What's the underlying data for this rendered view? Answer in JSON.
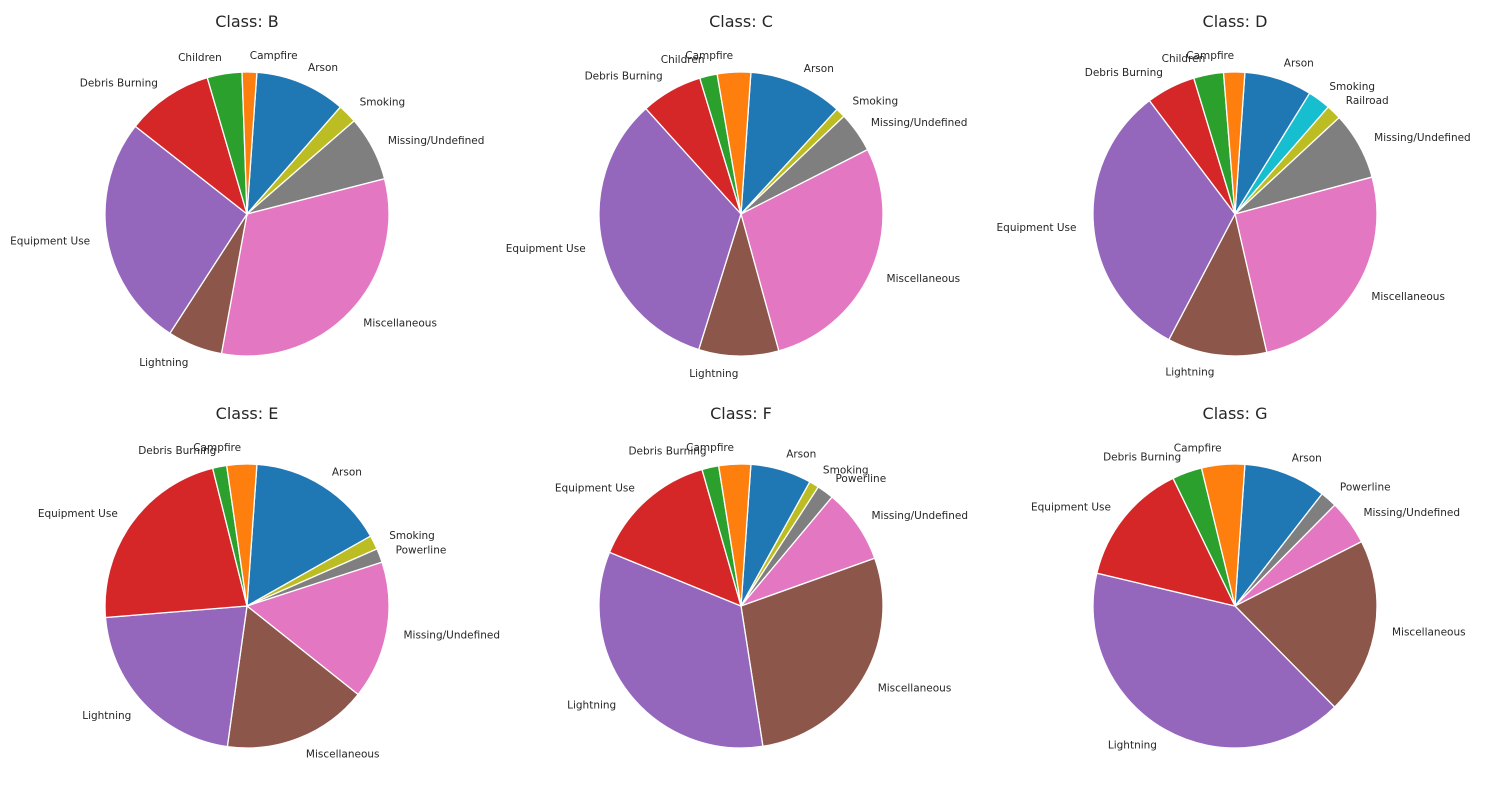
{
  "colors": {
    "Arson": "#1f77b4",
    "Campfire": "#ff7f0e",
    "Children": "#2ca02c",
    "Debris Burning": "#d62728",
    "Equipment Use": "#9467bd",
    "Lightning": "#8c564b",
    "Miscellaneous": "#e377c2",
    "Missing/Undefined": "#7f7f7f",
    "Smoking": "#bcbd22",
    "Railroad": "#17becf",
    "Powerline": "#7f7f7f"
  },
  "chart_data": [
    {
      "type": "pie",
      "title": "Class: B",
      "slices": [
        {
          "label": "Arson",
          "value": 9.9,
          "color": "#1f77b4"
        },
        {
          "label": "Smoking",
          "value": 2.1,
          "color": "#bcbd22"
        },
        {
          "label": "Missing/Undefined",
          "value": 7.1,
          "color": "#7f7f7f"
        },
        {
          "label": "Miscellaneous",
          "value": 30.6,
          "color": "#e377c2"
        },
        {
          "label": "Lightning",
          "value": 6.0,
          "color": "#8c564b"
        },
        {
          "label": "Equipment Use",
          "value": 25.4,
          "color": "#9467bd"
        },
        {
          "label": "Debris Burning",
          "value": 9.5,
          "color": "#d62728"
        },
        {
          "label": "Children",
          "value": 3.8,
          "color": "#2ca02c"
        },
        {
          "label": "Campfire",
          "value": 1.6,
          "color": "#ff7f0e"
        }
      ]
    },
    {
      "type": "pie",
      "title": "Class: C",
      "slices": [
        {
          "label": "Arson",
          "value": 10.7,
          "color": "#1f77b4"
        },
        {
          "label": "Smoking",
          "value": 1.1,
          "color": "#bcbd22"
        },
        {
          "label": "Missing/Undefined",
          "value": 4.6,
          "color": "#7f7f7f"
        },
        {
          "label": "Miscellaneous",
          "value": 28.2,
          "color": "#e377c2"
        },
        {
          "label": "Lightning",
          "value": 9.1,
          "color": "#8c564b"
        },
        {
          "label": "Equipment Use",
          "value": 33.5,
          "color": "#9467bd"
        },
        {
          "label": "Debris Burning",
          "value": 7.0,
          "color": "#d62728"
        },
        {
          "label": "Children",
          "value": 2.0,
          "color": "#2ca02c"
        },
        {
          "label": "Campfire",
          "value": 3.8,
          "color": "#ff7f0e"
        }
      ]
    },
    {
      "type": "pie",
      "title": "Class: D",
      "slices": [
        {
          "label": "Arson",
          "value": 7.7,
          "color": "#1f77b4"
        },
        {
          "label": "Smoking",
          "value": 2.6,
          "color": "#17becf"
        },
        {
          "label": "Railroad",
          "value": 1.7,
          "color": "#bcbd22"
        },
        {
          "label": "Missing/Undefined",
          "value": 7.7,
          "color": "#7f7f7f"
        },
        {
          "label": "Miscellaneous",
          "value": 25.6,
          "color": "#e377c2"
        },
        {
          "label": "Lightning",
          "value": 11.3,
          "color": "#8c564b"
        },
        {
          "label": "Equipment Use",
          "value": 32.0,
          "color": "#9467bd"
        },
        {
          "label": "Debris Burning",
          "value": 5.6,
          "color": "#d62728"
        },
        {
          "label": "Children",
          "value": 3.4,
          "color": "#2ca02c"
        },
        {
          "label": "Campfire",
          "value": 2.4,
          "color": "#ff7f0e"
        }
      ]
    },
    {
      "type": "pie",
      "title": "Class: E",
      "slices": [
        {
          "label": "Arson",
          "value": 15.7,
          "color": "#1f77b4"
        },
        {
          "label": "Smoking",
          "value": 1.6,
          "color": "#bcbd22"
        },
        {
          "label": "Powerline",
          "value": 1.6,
          "color": "#7f7f7f"
        },
        {
          "label": "Missing/Undefined",
          "value": 15.7,
          "color": "#e377c2"
        },
        {
          "label": "Miscellaneous",
          "value": 16.5,
          "color": "#8c564b"
        },
        {
          "label": "Lightning",
          "value": 21.5,
          "color": "#9467bd"
        },
        {
          "label": "Equipment Use",
          "value": 22.4,
          "color": "#d62728"
        },
        {
          "label": "Debris Burning",
          "value": 1.6,
          "color": "#2ca02c"
        },
        {
          "label": "Campfire",
          "value": 3.4,
          "color": "#ff7f0e"
        }
      ]
    },
    {
      "type": "pie",
      "title": "Class: F",
      "slices": [
        {
          "label": "Arson",
          "value": 6.9,
          "color": "#1f77b4"
        },
        {
          "label": "Smoking",
          "value": 1.1,
          "color": "#bcbd22"
        },
        {
          "label": "Powerline",
          "value": 1.9,
          "color": "#7f7f7f"
        },
        {
          "label": "Missing/Undefined",
          "value": 8.4,
          "color": "#e377c2"
        },
        {
          "label": "Miscellaneous",
          "value": 27.8,
          "color": "#8c564b"
        },
        {
          "label": "Lightning",
          "value": 33.4,
          "color": "#9467bd"
        },
        {
          "label": "Equipment Use",
          "value": 14.3,
          "color": "#d62728"
        },
        {
          "label": "Debris Burning",
          "value": 1.9,
          "color": "#2ca02c"
        },
        {
          "label": "Campfire",
          "value": 3.6,
          "color": "#ff7f0e"
        }
      ]
    },
    {
      "type": "pie",
      "title": "Class: G",
      "slices": [
        {
          "label": "Arson",
          "value": 9.4,
          "color": "#1f77b4"
        },
        {
          "label": "Powerline",
          "value": 1.9,
          "color": "#7f7f7f"
        },
        {
          "label": "Missing/Undefined",
          "value": 5.1,
          "color": "#e377c2"
        },
        {
          "label": "Miscellaneous",
          "value": 20.1,
          "color": "#8c564b"
        },
        {
          "label": "Lightning",
          "value": 41.1,
          "color": "#9467bd"
        },
        {
          "label": "Equipment Use",
          "value": 14.1,
          "color": "#d62728"
        },
        {
          "label": "Debris Burning",
          "value": 3.4,
          "color": "#2ca02c"
        },
        {
          "label": "Campfire",
          "value": 4.9,
          "color": "#ff7f0e"
        }
      ]
    }
  ]
}
